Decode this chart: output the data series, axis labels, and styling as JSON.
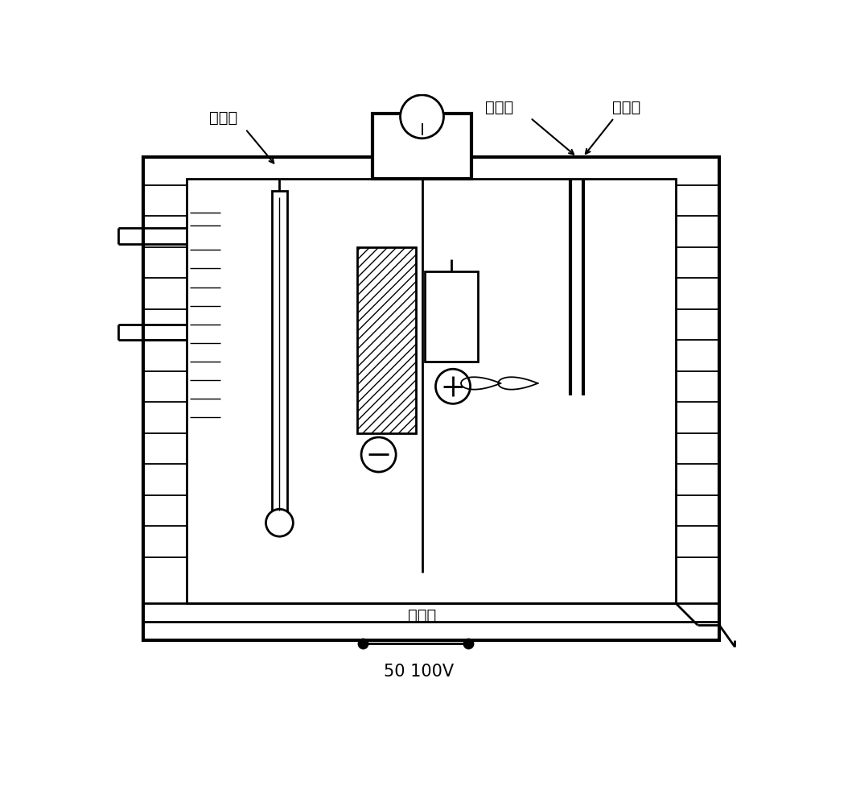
{
  "title": "50 100V",
  "label_thermometer": "温度计",
  "label_stirrer": "摔拌器",
  "label_electrolyte": "电解液",
  "label_cooling_water": "冷却水",
  "bg_color": "#ffffff",
  "line_color": "#000000",
  "fig_width": 10.64,
  "fig_height": 9.76,
  "lw_thick": 3.0,
  "lw_main": 2.0,
  "lw_thin": 1.3,
  "lw_hair": 1.0
}
